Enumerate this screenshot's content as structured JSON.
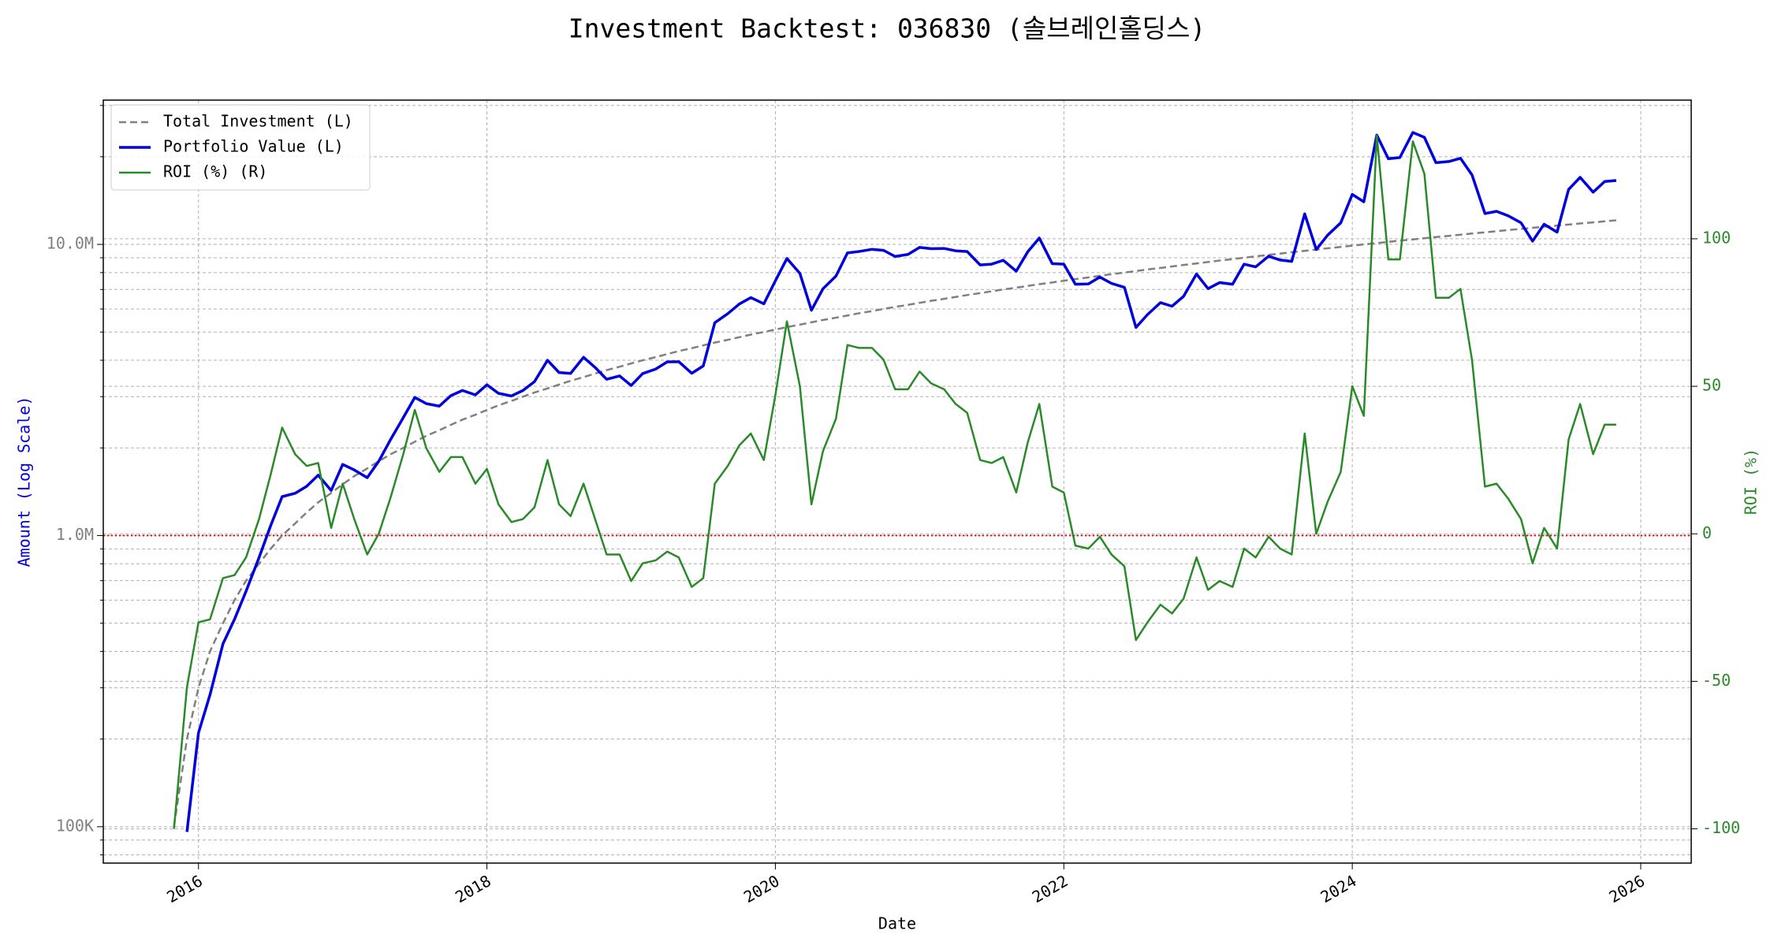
{
  "chart_data": {
    "type": "line",
    "title": "Investment Backtest: 036830 (솔브레인홀딩스)",
    "xlabel": "Date",
    "ylabel": "Amount (Log Scale)",
    "y2label": "ROI (%)",
    "yscale": "log",
    "grid": true,
    "legend": "upper left",
    "xlim": [
      2015.34,
      2026.35
    ],
    "xticks": [
      2016,
      2018,
      2020,
      2022,
      2024,
      2026
    ],
    "ylim": [
      75000,
      31300000
    ],
    "yticks": [
      {
        "value": 100000,
        "label": "100K"
      },
      {
        "value": 1000000,
        "label": "1.0M"
      },
      {
        "value": 10000000,
        "label": "10.0M"
      }
    ],
    "y2lim": [
      -111.6,
      147
    ],
    "y2ticks": [
      -100,
      -50,
      0,
      50,
      100
    ],
    "hline": {
      "value": 1000000,
      "color": "#dd0000"
    },
    "x": [
      2015.83,
      2015.92,
      2016,
      2016.08,
      2016.17,
      2016.25,
      2016.33,
      2016.42,
      2016.5,
      2016.58,
      2016.67,
      2016.75,
      2016.83,
      2016.92,
      2017,
      2017.08,
      2017.17,
      2017.25,
      2017.33,
      2017.42,
      2017.5,
      2017.58,
      2017.67,
      2017.75,
      2017.83,
      2017.92,
      2018,
      2018.08,
      2018.17,
      2018.25,
      2018.33,
      2018.42,
      2018.5,
      2018.58,
      2018.67,
      2018.75,
      2018.83,
      2018.92,
      2019,
      2019.08,
      2019.17,
      2019.25,
      2019.33,
      2019.42,
      2019.5,
      2019.58,
      2019.67,
      2019.75,
      2019.83,
      2019.92,
      2020,
      2020.08,
      2020.17,
      2020.25,
      2020.33,
      2020.42,
      2020.5,
      2020.58,
      2020.67,
      2020.75,
      2020.83,
      2020.92,
      2021,
      2021.08,
      2021.17,
      2021.25,
      2021.33,
      2021.42,
      2021.5,
      2021.58,
      2021.67,
      2021.75,
      2021.83,
      2021.92,
      2022,
      2022.08,
      2022.17,
      2022.25,
      2022.33,
      2022.42,
      2022.5,
      2022.58,
      2022.67,
      2022.75,
      2022.83,
      2022.92,
      2023,
      2023.08,
      2023.17,
      2023.25,
      2023.33,
      2023.42,
      2023.5,
      2023.58,
      2023.67,
      2023.75,
      2023.83,
      2023.92,
      2024,
      2024.08,
      2024.17,
      2024.25,
      2024.33,
      2024.42,
      2024.5,
      2024.58,
      2024.67,
      2024.75,
      2024.83,
      2024.92,
      2025,
      2025.08,
      2025.17,
      2025.25,
      2025.33,
      2025.42,
      2025.5,
      2025.58,
      2025.67,
      2025.75,
      2025.83
    ],
    "series": [
      {
        "name": "Total Investment (L)",
        "color": "#808080",
        "dash": true,
        "width": 2.5,
        "axis": "y",
        "values": [
          100000,
          200000,
          300000,
          400000,
          500000,
          600000,
          700000,
          800000,
          900000,
          1000000,
          1100000,
          1200000,
          1300000,
          1400000,
          1500000,
          1600000,
          1700000,
          1800000,
          1900000,
          2000000,
          2100000,
          2200000,
          2300000,
          2400000,
          2500000,
          2600000,
          2700000,
          2800000,
          2900000,
          3000000,
          3100000,
          3200000,
          3300000,
          3400000,
          3500000,
          3600000,
          3700000,
          3800000,
          3900000,
          4000000,
          4100000,
          4200000,
          4300000,
          4400000,
          4500000,
          4600000,
          4700000,
          4800000,
          4900000,
          5000000,
          5100000,
          5200000,
          5300000,
          5400000,
          5500000,
          5600000,
          5700000,
          5800000,
          5900000,
          6000000,
          6100000,
          6200000,
          6300000,
          6400000,
          6500000,
          6600000,
          6700000,
          6800000,
          6900000,
          7000000,
          7100000,
          7200000,
          7300000,
          7400000,
          7500000,
          7600000,
          7700000,
          7800000,
          7900000,
          8000000,
          8100000,
          8200000,
          8300000,
          8400000,
          8500000,
          8600000,
          8700000,
          8800000,
          8900000,
          9000000,
          9100000,
          9200000,
          9300000,
          9400000,
          9500000,
          9600000,
          9700000,
          9800000,
          9900000,
          10000000,
          10100000,
          10200000,
          10300000,
          10400000,
          10500000,
          10600000,
          10700000,
          10800000,
          10900000,
          11000000,
          11100000,
          11200000,
          11300000,
          11400000,
          11500000,
          11600000,
          11700000,
          11800000,
          11900000,
          12000000,
          12100000
        ]
      },
      {
        "name": "Portfolio Value (L)",
        "color": "#0000dd",
        "dash": false,
        "width": 3.5,
        "axis": "y",
        "values": [
          null,
          96000,
          210000,
          284000,
          425000,
          516000,
          644000,
          840000,
          1080000,
          1360000,
          1397000,
          1476000,
          1612000,
          1428000,
          1755000,
          1680000,
          1581000,
          1800000,
          2128000,
          2540000,
          2982000,
          2838000,
          2783000,
          3024000,
          3150000,
          3042000,
          3294000,
          3080000,
          3016000,
          3150000,
          3379000,
          4000000,
          3630000,
          3604000,
          4095000,
          3780000,
          3441000,
          3534000,
          3276000,
          3600000,
          3731000,
          3948000,
          3956000,
          3608000,
          3825000,
          5382000,
          5781000,
          6240000,
          6566000,
          6250000,
          7497000,
          8944000,
          7950000,
          5940000,
          7040000,
          7784000,
          9348000,
          9454000,
          9617000,
          9540000,
          9089000,
          9238000,
          9765000,
          9664000,
          9685000,
          9504000,
          9447000,
          8500000,
          8556000,
          8820000,
          8094000,
          9432000,
          10512000,
          8584000,
          8550000,
          7296000,
          7315000,
          7722000,
          7347000,
          7120000,
          5184000,
          5740000,
          6308000,
          6132000,
          6630000,
          7912000,
          7047000,
          7392000,
          7298000,
          8550000,
          8372000,
          9108000,
          8835000,
          8742000,
          12730000,
          9600000,
          10767000,
          11858000,
          14850000,
          14000000,
          23735000,
          19686000,
          19879000,
          24232000,
          23310000,
          19080000,
          19260000,
          19764000,
          17331000,
          12760000,
          12987000,
          12544000,
          11865000,
          10260000,
          11730000,
          11020000,
          15444000,
          16992000,
          15113000,
          16440000,
          16577000
        ]
      },
      {
        "name": "ROI (%) (R)",
        "color": "#2a8a2a",
        "dash": false,
        "width": 2.5,
        "axis": "y2",
        "values": [
          -100,
          -52,
          -30,
          -29,
          -15,
          -14,
          -8,
          5,
          20,
          36,
          27,
          23,
          24,
          2,
          17,
          5,
          -7,
          0,
          12,
          27,
          42,
          29,
          21,
          26,
          26,
          17,
          22,
          10,
          4,
          5,
          9,
          25,
          10,
          6,
          17,
          5,
          -7,
          -7,
          -16,
          -10,
          -9,
          -6,
          -8,
          -18,
          -15,
          17,
          23,
          30,
          34,
          25,
          47,
          72,
          50,
          10,
          28,
          39,
          64,
          63,
          63,
          59,
          49,
          49,
          55,
          51,
          49,
          44,
          41,
          25,
          24,
          26,
          14,
          31,
          44,
          16,
          14,
          -4,
          -5,
          -1,
          -7,
          -11,
          -36,
          -30,
          -24,
          -27,
          -22,
          -8,
          -19,
          -16,
          -18,
          -5,
          -8,
          -1,
          -5,
          -7,
          34,
          0,
          11,
          21,
          50,
          40,
          135,
          93,
          93,
          133,
          122,
          80,
          80,
          83,
          59,
          16,
          17,
          12,
          5,
          -10,
          2,
          -5,
          32,
          44,
          27,
          37,
          37
        ]
      }
    ]
  }
}
